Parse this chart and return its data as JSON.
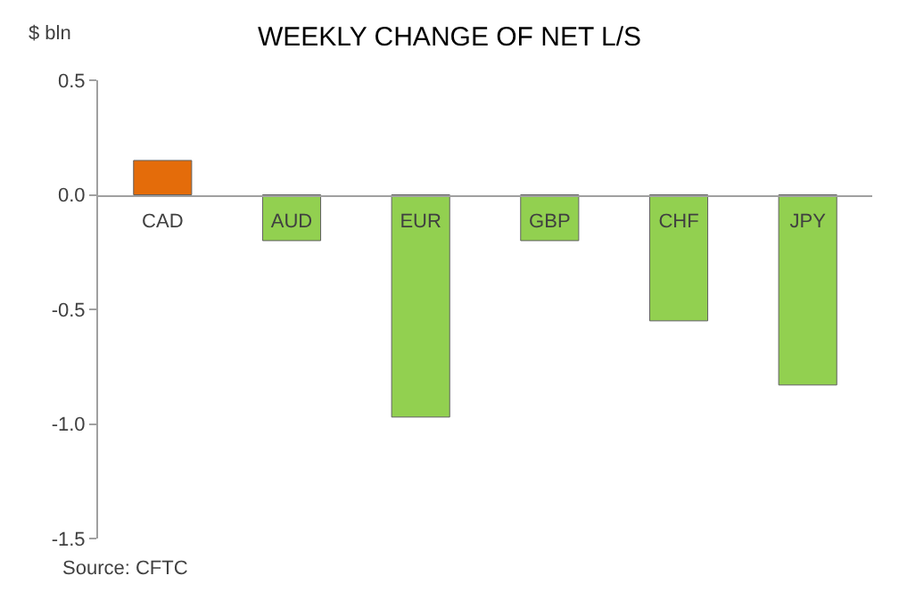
{
  "chart_data": {
    "type": "bar",
    "title": "WEEKLY CHANGE OF NET L/S",
    "ylabel": "$ bln",
    "categories": [
      "CAD",
      "AUD",
      "EUR",
      "GBP",
      "CHF",
      "JPY"
    ],
    "values": [
      0.15,
      -0.2,
      -0.97,
      -0.2,
      -0.55,
      -0.83
    ],
    "colors": [
      "#e46c0a",
      "#92d050",
      "#92d050",
      "#92d050",
      "#92d050",
      "#92d050"
    ],
    "ylim": [
      -1.5,
      0.5
    ],
    "yticks": [
      {
        "value": -1.5,
        "label": "-1.5"
      },
      {
        "value": -1.0,
        "label": "-1.0"
      },
      {
        "value": -0.5,
        "label": "-0.5"
      },
      {
        "value": 0,
        "label": "0.0"
      },
      {
        "value": 0.5,
        "label": "0.5"
      }
    ],
    "grid": false,
    "annotations": [
      "Source: CFTC"
    ]
  }
}
